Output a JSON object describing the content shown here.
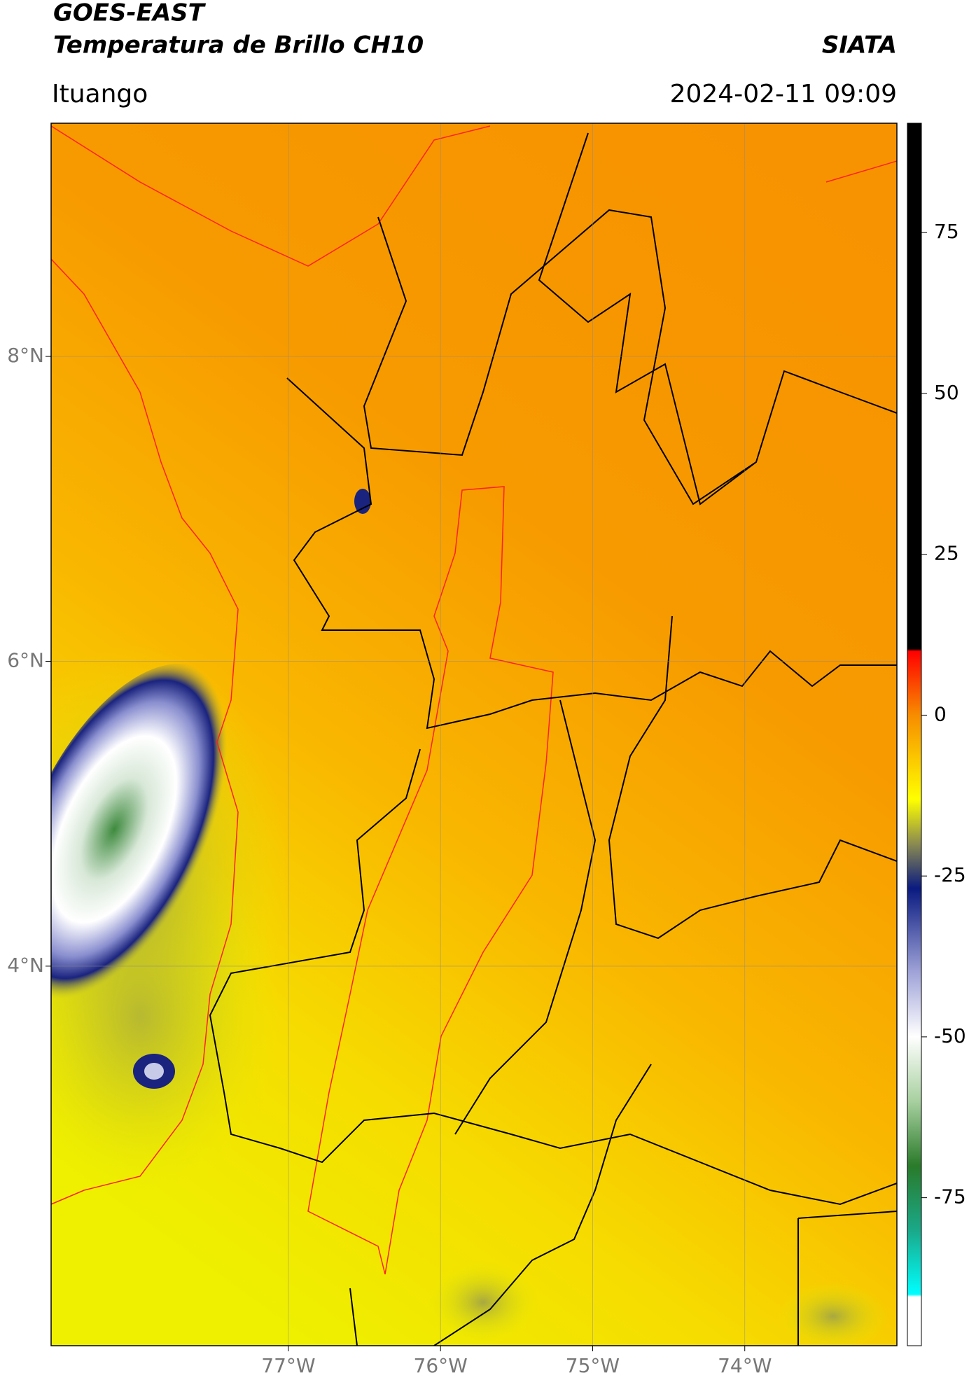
{
  "header": {
    "title": "GOES-EAST",
    "subtitle": "Temperatura de Brillo CH10",
    "source": "SIATA",
    "location": "Ituango",
    "datetime": "2024-02-11 09:09"
  },
  "map": {
    "lonlim": [
      -78.56,
      -73.0
    ],
    "latlim": [
      1.51,
      9.53
    ],
    "lon_ticks": [
      {
        "value": -77,
        "label": "77°W"
      },
      {
        "value": -76,
        "label": "76°W"
      },
      {
        "value": -75,
        "label": "75°W"
      },
      {
        "value": -74,
        "label": "74°W"
      }
    ],
    "lat_ticks": [
      {
        "value": 8,
        "label": "8°N"
      },
      {
        "value": 6,
        "label": "6°N"
      },
      {
        "value": 4,
        "label": "4°N"
      }
    ]
  },
  "colorbar": {
    "lim": [
      -98,
      92
    ],
    "ticks": [
      75,
      50,
      25,
      0,
      -25,
      -50,
      -75
    ]
  }
}
